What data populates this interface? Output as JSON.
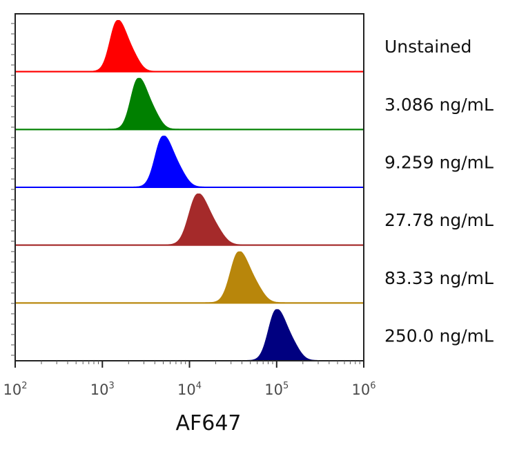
{
  "chart_data": {
    "type": "area",
    "title": "",
    "xlabel": "AF647",
    "ylabel": "",
    "x_scale": "log",
    "xlim": [
      100,
      1000000
    ],
    "x_ticks": [
      {
        "value": 100,
        "base": "10",
        "exp": "2"
      },
      {
        "value": 1000,
        "base": "10",
        "exp": "3"
      },
      {
        "value": 10000,
        "base": "10",
        "exp": "4"
      },
      {
        "value": 100000,
        "base": "10",
        "exp": "5"
      },
      {
        "value": 1000000,
        "base": "10",
        "exp": "6"
      }
    ],
    "legend_placement": "right",
    "grid": false,
    "series": [
      {
        "name": "Unstained",
        "color": "#ff0000",
        "peak": 1500,
        "sigma": 0.085,
        "skew": 0.02
      },
      {
        "name": "3.086 ng/mL",
        "color": "#008000",
        "peak": 2600,
        "sigma": 0.085,
        "skew": 0.03
      },
      {
        "name": "9.259 ng/mL",
        "color": "#0000ff",
        "peak": 5000,
        "sigma": 0.09,
        "skew": 0.04
      },
      {
        "name": "27.78 ng/mL",
        "color": "#a52a2a",
        "peak": 12500,
        "sigma": 0.1,
        "skew": 0.06
      },
      {
        "name": "83.33 ng/mL",
        "color": "#b8860b",
        "peak": 37000,
        "sigma": 0.095,
        "skew": 0.05
      },
      {
        "name": "250.0 ng/mL",
        "color": "#000080",
        "peak": 100000,
        "sigma": 0.09,
        "skew": 0.03
      }
    ]
  }
}
